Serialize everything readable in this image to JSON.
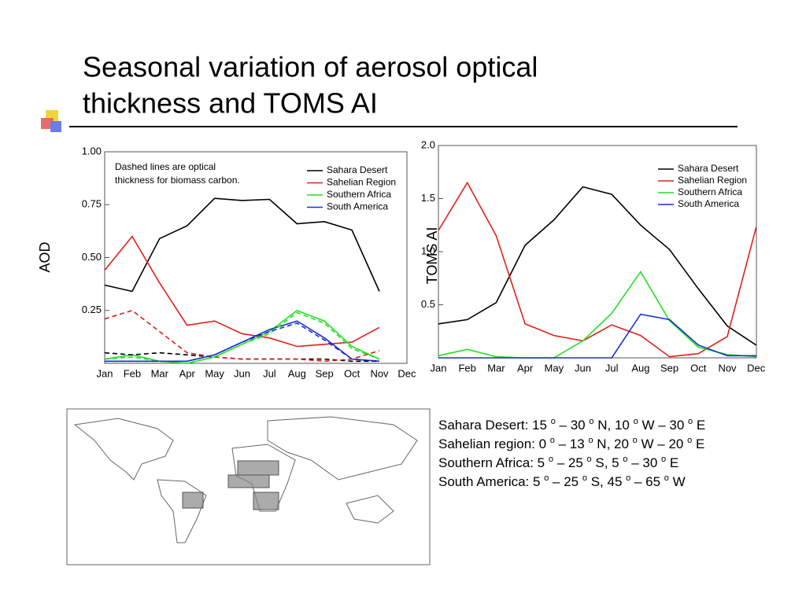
{
  "title": [
    "Seasonal  variation of aerosol optical",
    "thickness and TOMS AI"
  ],
  "chart_data": [
    {
      "type": "line",
      "ylabel": "AOD",
      "annotation": [
        "Dashed lines are optical",
        "thickness for biomass carbon."
      ],
      "categories": [
        "Jan",
        "Feb",
        "Mar",
        "Apr",
        "May",
        "Jun",
        "Jul",
        "Aug",
        "Sep",
        "Oct",
        "Nov",
        "Dec"
      ],
      "ylim": [
        0,
        1
      ],
      "yticks": [
        0.25,
        {
          "value": 0.5,
          "label": "0.50"
        },
        0.75,
        {
          "value": 1,
          "label": "1.00"
        }
      ],
      "legend": "upper right",
      "series": [
        {
          "name": "Sahara Desert",
          "color": "#000000",
          "values": [
            0.37,
            0.34,
            0.59,
            0.65,
            0.78,
            0.77,
            0.775,
            0.66,
            0.67,
            0.63,
            0.34,
            null
          ]
        },
        {
          "name": "Sahelian Region",
          "color": "#e0201b",
          "values": [
            0.44,
            0.6,
            0.38,
            0.18,
            0.2,
            0.14,
            0.12,
            0.08,
            0.09,
            0.1,
            0.17,
            null
          ]
        },
        {
          "name": "Southern Africa",
          "color": "#22e022",
          "values": [
            0.02,
            0.04,
            0.01,
            0.0,
            0.03,
            0.09,
            0.15,
            0.25,
            0.2,
            0.08,
            0.02,
            null
          ]
        },
        {
          "name": "South America",
          "color": "#1a2fd0",
          "values": [
            0.01,
            0.01,
            0.01,
            0.01,
            0.04,
            0.1,
            0.16,
            0.2,
            0.12,
            0.02,
            0.01,
            null
          ]
        },
        {
          "color": "#000000",
          "dashed": true,
          "values": [
            0.05,
            0.04,
            0.05,
            0.04,
            0.03,
            0.02,
            0.02,
            0.02,
            0.02,
            0.01,
            0.01,
            null
          ]
        },
        {
          "color": "#e0201b",
          "dashed": true,
          "values": [
            0.21,
            0.25,
            0.15,
            0.05,
            0.03,
            0.02,
            0.02,
            0.02,
            0.01,
            0.02,
            0.06,
            null
          ]
        },
        {
          "color": "#22e022",
          "dashed": true,
          "values": [
            0.02,
            0.03,
            0.01,
            0.0,
            0.03,
            0.09,
            0.14,
            0.24,
            0.19,
            0.07,
            0.02,
            null
          ]
        },
        {
          "color": "#1a2fd0",
          "dashed": true,
          "values": [
            0.01,
            0.01,
            0.01,
            0.01,
            0.04,
            0.1,
            0.15,
            0.19,
            0.11,
            0.02,
            0.01,
            null
          ]
        }
      ]
    },
    {
      "type": "line",
      "ylabel": "TOMS AI",
      "categories": [
        "Jan",
        "Feb",
        "Mar",
        "Apr",
        "May",
        "Jun",
        "Jul",
        "Aug",
        "Sep",
        "Oct",
        "Nov",
        "Dec"
      ],
      "ylim": [
        0,
        2
      ],
      "yticks": [
        0.5,
        {
          "value": 1,
          "label": "1.0"
        },
        1.5,
        {
          "value": 2,
          "label": "2.0"
        }
      ],
      "legend": "upper right",
      "series": [
        {
          "name": "Sahara Desert",
          "color": "#000000",
          "values": [
            0.32,
            0.36,
            0.52,
            1.06,
            1.3,
            1.61,
            1.54,
            1.25,
            1.02,
            0.65,
            0.3,
            0.12
          ]
        },
        {
          "name": "Sahelian Region",
          "color": "#e0201b",
          "values": [
            1.2,
            1.65,
            1.15,
            0.32,
            0.21,
            0.16,
            0.31,
            0.21,
            0.01,
            0.04,
            0.2,
            1.23
          ]
        },
        {
          "name": "Southern Africa",
          "color": "#22e022",
          "values": [
            0.02,
            0.08,
            0.01,
            0.0,
            0.0,
            0.16,
            0.42,
            0.81,
            0.35,
            0.1,
            0.03,
            0.01
          ]
        },
        {
          "name": "South America",
          "color": "#1a2fd0",
          "values": [
            0,
            0,
            0,
            0,
            0,
            0,
            0,
            0.41,
            0.36,
            0.12,
            0.02,
            0.02
          ]
        }
      ]
    }
  ],
  "regions": [
    [
      "Sahara Desert: 15 ",
      "o",
      " – 30 ",
      "o",
      " N, 10 ",
      "o",
      " W – 30 ",
      "o",
      " E"
    ],
    [
      "Sahelian region: 0 ",
      "o",
      " – 13 ",
      "o",
      " N, 20 ",
      "o",
      " W – 20 ",
      "o",
      " E"
    ],
    [
      "Southern Africa: 5 ",
      "o",
      " – 25 ",
      "o",
      " S, 5 ",
      "o",
      " – 30 ",
      "o",
      " E"
    ],
    [
      "South America: 5 ",
      "o",
      " – 25 ",
      "o",
      " S, 45 ",
      "o",
      " – 65 ",
      "o",
      " W"
    ]
  ]
}
